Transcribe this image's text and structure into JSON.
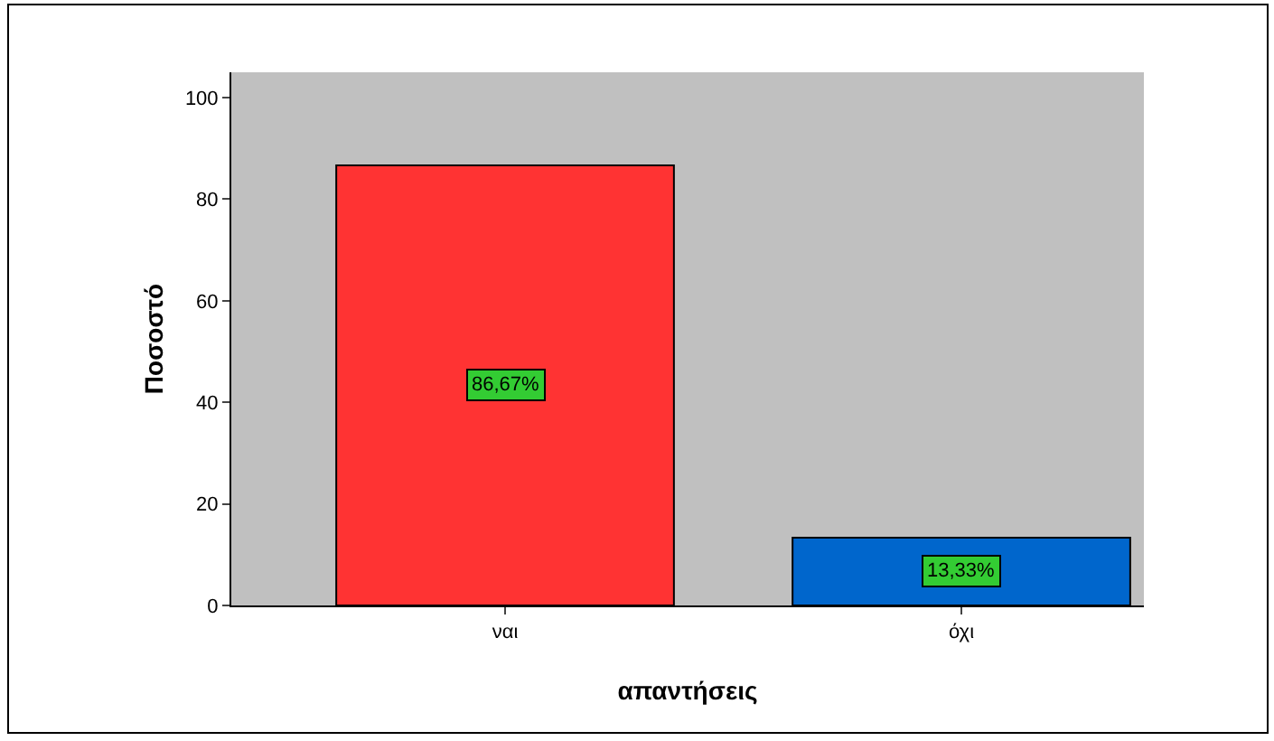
{
  "chart_data": {
    "type": "bar",
    "xlabel": "απαντήσεις",
    "ylabel": "Ποσοστό",
    "categories": [
      "ναι",
      "όχι"
    ],
    "values": [
      86.67,
      13.33
    ],
    "colors": [
      "#ff3333",
      "#0066cc"
    ],
    "value_labels": [
      "86,67%",
      "13,33%"
    ],
    "ylim": [
      0,
      105
    ],
    "yticks": [
      0,
      20,
      40,
      60,
      80,
      100
    ],
    "grid": false,
    "legend": false
  }
}
